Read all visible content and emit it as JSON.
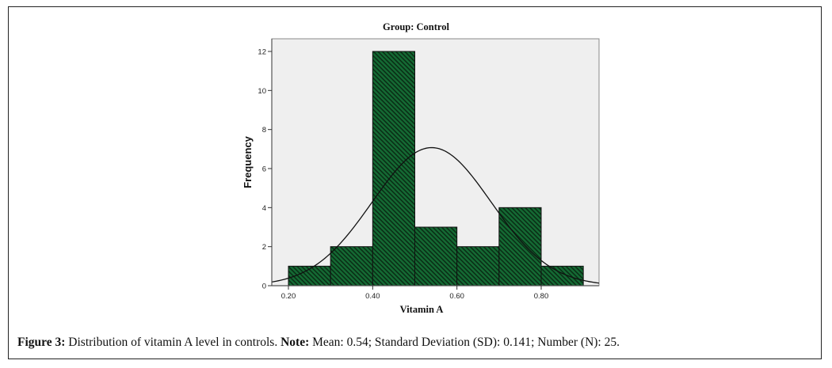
{
  "chart_data": {
    "type": "bar",
    "subtype": "histogram",
    "title": "Group: Control",
    "xlabel": "Vitamin A",
    "ylabel": "Frequency",
    "bins": [
      {
        "start": 0.2,
        "end": 0.3,
        "count": 1
      },
      {
        "start": 0.3,
        "end": 0.4,
        "count": 2
      },
      {
        "start": 0.4,
        "end": 0.5,
        "count": 12
      },
      {
        "start": 0.5,
        "end": 0.6,
        "count": 3
      },
      {
        "start": 0.6,
        "end": 0.7,
        "count": 2
      },
      {
        "start": 0.7,
        "end": 0.8,
        "count": 4
      },
      {
        "start": 0.8,
        "end": 0.9,
        "count": 1
      }
    ],
    "normal_curve": {
      "mean": 0.54,
      "sd": 0.141,
      "n": 25,
      "bin_width": 0.1
    },
    "xlim": [
      0.16,
      0.94
    ],
    "ylim": [
      0,
      12.6
    ],
    "xticks": [
      {
        "value": 0.2,
        "label": "0.20"
      },
      {
        "value": 0.4,
        "label": "0.40"
      },
      {
        "value": 0.6,
        "label": "0.60"
      },
      {
        "value": 0.8,
        "label": "0.80"
      }
    ],
    "yticks": [
      {
        "value": 0,
        "label": "0"
      },
      {
        "value": 2,
        "label": "2"
      },
      {
        "value": 4,
        "label": "4"
      },
      {
        "value": 6,
        "label": "6"
      },
      {
        "value": 8,
        "label": "8"
      },
      {
        "value": 10,
        "label": "10"
      },
      {
        "value": 12,
        "label": "12"
      }
    ],
    "grid": false,
    "colors": {
      "bar_fill": "#156b34",
      "bar_hatch": "#0a2e16",
      "plot_background": "#efefef",
      "curve": "#111111"
    }
  },
  "caption": {
    "figure_label": "Figure 3:",
    "text": " Distribution of vitamin A level in controls. ",
    "note_label": "Note:",
    "note_text": " Mean: 0.54; Standard Deviation (SD): 0.141; Number (N): 25."
  }
}
